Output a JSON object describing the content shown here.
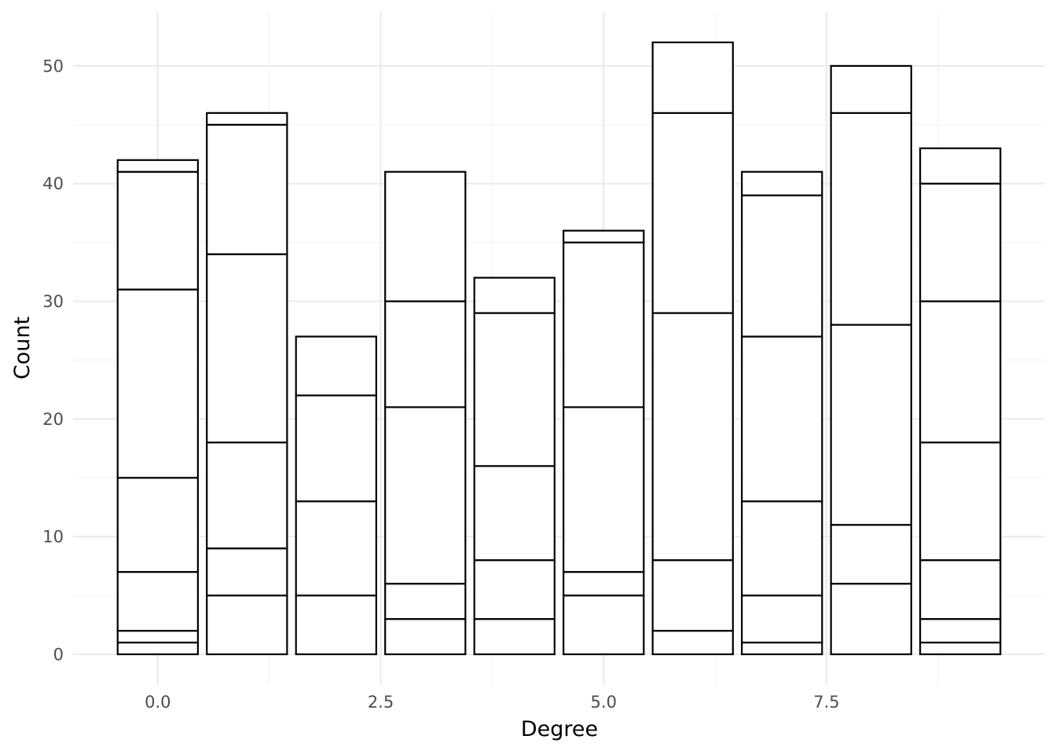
{
  "chart_data": {
    "type": "bar",
    "stacked": true,
    "xlabel": "Degree",
    "ylabel": "Count",
    "xlim": [
      -0.95,
      9.95
    ],
    "ylim": [
      -2.6,
      54.6
    ],
    "x_ticks": [
      0.0,
      2.5,
      5.0,
      7.5
    ],
    "x_tick_labels": [
      "0.0",
      "2.5",
      "5.0",
      "7.5"
    ],
    "y_ticks": [
      0,
      10,
      20,
      30,
      40,
      50
    ],
    "y_tick_labels": [
      "0",
      "10",
      "20",
      "30",
      "40",
      "50"
    ],
    "grid": true,
    "bar_fill": "#ffffff",
    "bar_outline": "#000000",
    "bar_width": 0.9,
    "x": [
      0,
      1,
      2,
      3,
      4,
      5,
      6,
      7,
      8,
      9
    ],
    "stack_boundaries": [
      [
        1,
        2,
        7,
        15,
        31,
        41,
        42
      ],
      [
        5,
        9,
        18,
        34,
        45,
        46
      ],
      [
        5,
        13,
        22,
        27
      ],
      [
        3,
        6,
        21,
        30,
        41
      ],
      [
        3,
        8,
        16,
        29,
        32
      ],
      [
        5,
        7,
        21,
        35,
        36
      ],
      [
        2,
        8,
        29,
        46,
        52
      ],
      [
        1,
        5,
        13,
        27,
        39,
        41
      ],
      [
        6,
        11,
        28,
        46,
        50
      ],
      [
        1,
        3,
        8,
        18,
        30,
        40,
        43
      ]
    ],
    "totals": [
      42,
      46,
      27,
      41,
      32,
      36,
      52,
      41,
      50,
      43
    ]
  }
}
